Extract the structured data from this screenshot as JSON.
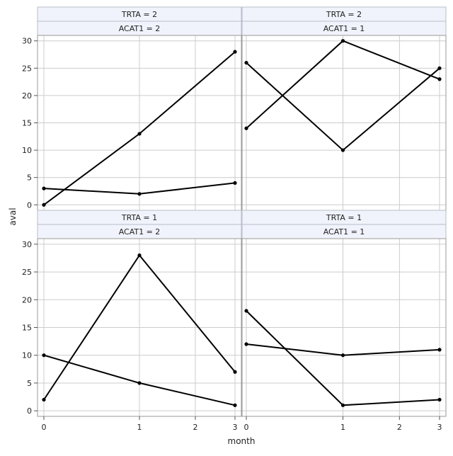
{
  "chart_data": {
    "type": "line",
    "layout": "panel-2x2",
    "xlabel": "month",
    "ylabel": "aval",
    "x_ticks": [
      0,
      1,
      2,
      3
    ],
    "y_ticks": [
      0,
      5,
      10,
      15,
      20,
      25,
      30
    ],
    "x_scale": "log1p",
    "xlim": [
      0,
      3
    ],
    "ylim": [
      -1,
      31
    ],
    "grid": true,
    "line_color": "#000000",
    "grid_color": "#cccccc",
    "header_bg": "#f0f3fb",
    "panels": [
      {
        "headers": [
          "TRTA = 2",
          "ACAT1 = 2"
        ],
        "series": [
          {
            "x": [
              0,
              1,
              3
            ],
            "y": [
              0,
              13,
              28
            ]
          },
          {
            "x": [
              0,
              1,
              3
            ],
            "y": [
              3,
              2,
              4
            ]
          }
        ]
      },
      {
        "headers": [
          "TRTA = 2",
          "ACAT1 = 1"
        ],
        "series": [
          {
            "x": [
              0,
              1,
              3
            ],
            "y": [
              26,
              10,
              25
            ]
          },
          {
            "x": [
              0,
              1,
              3
            ],
            "y": [
              14,
              30,
              23
            ]
          }
        ]
      },
      {
        "headers": [
          "TRTA = 1",
          "ACAT1 = 2"
        ],
        "series": [
          {
            "x": [
              0,
              1,
              3
            ],
            "y": [
              2,
              28,
              7
            ]
          },
          {
            "x": [
              0,
              1,
              3
            ],
            "y": [
              10,
              5,
              1
            ]
          }
        ]
      },
      {
        "headers": [
          "TRTA = 1",
          "ACAT1 = 1"
        ],
        "series": [
          {
            "x": [
              0,
              1,
              3
            ],
            "y": [
              18,
              1,
              2
            ]
          },
          {
            "x": [
              0,
              1,
              3
            ],
            "y": [
              12,
              10,
              11
            ]
          }
        ]
      }
    ]
  }
}
